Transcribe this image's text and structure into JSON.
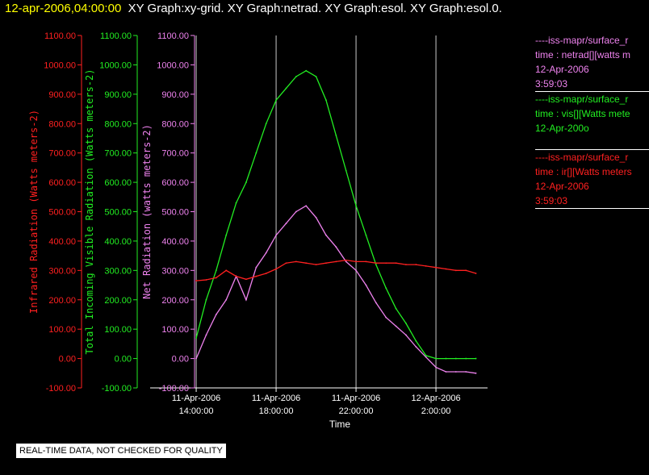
{
  "header": {
    "timestamp": "12-apr-2006,04:00:00",
    "graphs": "XY Graph:xy-grid.  XY Graph:netrad.  XY Graph:esol.  XY Graph:esol.0."
  },
  "colors": {
    "ir": "#ff2020",
    "vis": "#22ee22",
    "net": "#ee82ee",
    "grid": "#c8c8c8",
    "text": "#ffffff",
    "highlight": "#ffff00"
  },
  "legend": {
    "net": {
      "line1": "----iss-mapr/surface_r",
      "line2": "time : netrad[][watts m",
      "line3": "12-Apr-2006",
      "line4": "3:59:03"
    },
    "vis": {
      "line1": "----iss-mapr/surface_r",
      "line2": "time : vis[][Watts mete",
      "line3": "12-Apr-200o"
    },
    "ir": {
      "line1": "----iss-mapr/surface_r",
      "line2": "time : ir[][Watts meters",
      "line3": "12-Apr-2006",
      "line4": "3:59:03"
    }
  },
  "notice": "REAL-TIME DATA, NOT CHECKED FOR QUALITY",
  "chart_data": {
    "type": "line",
    "xlabel": "Time",
    "x_ticks": [
      {
        "time": "2006-04-11 14:00",
        "line1": "11-Apr-2006",
        "line2": "14:00:00"
      },
      {
        "time": "2006-04-11 18:00",
        "line1": "11-Apr-2006",
        "line2": "18:00:00"
      },
      {
        "time": "2006-04-11 22:00",
        "line1": "11-Apr-2006",
        "line2": "22:00:00"
      },
      {
        "time": "2006-04-12 02:00",
        "line1": "12-Apr-2006",
        "line2": "2:00:00"
      }
    ],
    "xlim": [
      "2006-04-11 13:55",
      "2006-04-12 04:35"
    ],
    "grid": "vertical",
    "axes": [
      {
        "key": "ir",
        "label": "Infrared Radiation (Watts meters-2)",
        "ylim": [
          -100,
          1100
        ],
        "ticks": [
          "-100.00",
          "0.00",
          "100.00",
          "200.00",
          "300.00",
          "400.00",
          "500.00",
          "600.00",
          "700.00",
          "800.00",
          "900.00",
          "1000.00",
          "1100.00"
        ]
      },
      {
        "key": "vis",
        "label": "Total Incoming Visible Radiation (Watts meters-2)",
        "ylim": [
          -100,
          1100
        ],
        "ticks": [
          "-100.00",
          "0.00",
          "100.00",
          "200.00",
          "300.00",
          "400.00",
          "500.00",
          "600.00",
          "700.00",
          "800.00",
          "900.00",
          "1000.00",
          "1100.00"
        ]
      },
      {
        "key": "net",
        "label": "Net Radiation (watts meters-2)",
        "ylim": [
          -100,
          1100
        ],
        "ticks": [
          "-100.00",
          "0.00",
          "100.00",
          "200.00",
          "300.00",
          "400.00",
          "500.00",
          "600.00",
          "700.00",
          "800.00",
          "900.00",
          "1000.00",
          "1100.00"
        ]
      }
    ],
    "series": [
      {
        "key": "net",
        "x": [
          "2006-04-11 14:00",
          "2006-04-11 14:30",
          "2006-04-11 15:00",
          "2006-04-11 15:30",
          "2006-04-11 16:00",
          "2006-04-11 16:30",
          "2006-04-11 17:00",
          "2006-04-11 17:30",
          "2006-04-11 18:00",
          "2006-04-11 18:30",
          "2006-04-11 19:00",
          "2006-04-11 19:30",
          "2006-04-11 20:00",
          "2006-04-11 20:30",
          "2006-04-11 21:00",
          "2006-04-11 21:30",
          "2006-04-11 22:00",
          "2006-04-11 22:30",
          "2006-04-11 23:00",
          "2006-04-11 23:30",
          "2006-04-12 00:00",
          "2006-04-12 00:30",
          "2006-04-12 01:00",
          "2006-04-12 01:30",
          "2006-04-12 02:00",
          "2006-04-12 02:30",
          "2006-04-12 03:00",
          "2006-04-12 03:30",
          "2006-04-12 04:00"
        ],
        "y": [
          0,
          80,
          150,
          200,
          280,
          200,
          310,
          360,
          420,
          460,
          500,
          520,
          480,
          420,
          380,
          330,
          300,
          250,
          190,
          140,
          110,
          80,
          40,
          5,
          -30,
          -45,
          -45,
          -45,
          -50
        ]
      },
      {
        "key": "vis",
        "x": [
          "2006-04-11 14:00",
          "2006-04-11 14:30",
          "2006-04-11 15:00",
          "2006-04-11 15:30",
          "2006-04-11 16:00",
          "2006-04-11 16:30",
          "2006-04-11 17:00",
          "2006-04-11 17:30",
          "2006-04-11 18:00",
          "2006-04-11 18:30",
          "2006-04-11 19:00",
          "2006-04-11 19:30",
          "2006-04-11 20:00",
          "2006-04-11 20:30",
          "2006-04-11 21:00",
          "2006-04-11 21:30",
          "2006-04-11 22:00",
          "2006-04-11 22:30",
          "2006-04-11 23:00",
          "2006-04-11 23:30",
          "2006-04-12 00:00",
          "2006-04-12 00:30",
          "2006-04-12 01:00",
          "2006-04-12 01:30",
          "2006-04-12 02:00",
          "2006-04-12 02:30",
          "2006-04-12 03:00",
          "2006-04-12 03:30",
          "2006-04-12 04:00"
        ],
        "y": [
          70,
          200,
          300,
          420,
          530,
          600,
          700,
          800,
          880,
          920,
          960,
          980,
          960,
          880,
          760,
          640,
          520,
          420,
          320,
          240,
          170,
          120,
          60,
          10,
          0,
          0,
          0,
          0,
          0
        ]
      },
      {
        "key": "ir",
        "x": [
          "2006-04-11 14:00",
          "2006-04-11 14:30",
          "2006-04-11 15:00",
          "2006-04-11 15:30",
          "2006-04-11 16:00",
          "2006-04-11 16:30",
          "2006-04-11 17:00",
          "2006-04-11 17:30",
          "2006-04-11 18:00",
          "2006-04-11 18:30",
          "2006-04-11 19:00",
          "2006-04-11 19:30",
          "2006-04-11 20:00",
          "2006-04-11 20:30",
          "2006-04-11 21:00",
          "2006-04-11 21:30",
          "2006-04-11 22:00",
          "2006-04-11 22:30",
          "2006-04-11 23:00",
          "2006-04-11 23:30",
          "2006-04-12 00:00",
          "2006-04-12 00:30",
          "2006-04-12 01:00",
          "2006-04-12 01:30",
          "2006-04-12 02:00",
          "2006-04-12 02:30",
          "2006-04-12 03:00",
          "2006-04-12 03:30",
          "2006-04-12 04:00"
        ],
        "y": [
          265,
          268,
          275,
          300,
          280,
          270,
          280,
          290,
          305,
          325,
          330,
          325,
          320,
          325,
          330,
          335,
          330,
          330,
          325,
          325,
          325,
          320,
          320,
          315,
          310,
          305,
          300,
          300,
          290
        ]
      }
    ]
  }
}
